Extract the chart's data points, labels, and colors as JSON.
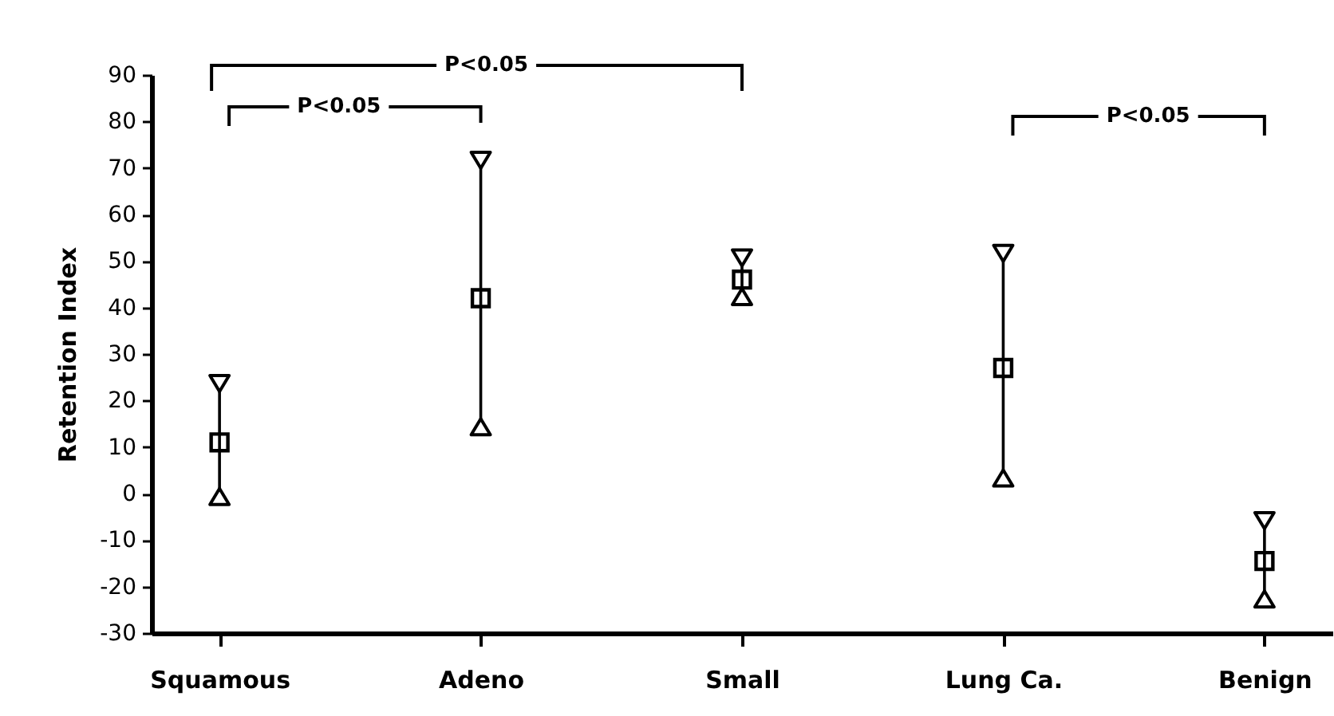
{
  "chart_data": {
    "type": "scatter",
    "ylabel": "Retention     Index",
    "categories": [
      "Squamous",
      "Adeno",
      "Small",
      "Lung Ca.",
      "Benign"
    ],
    "values": [
      11,
      42,
      46,
      27,
      -14.5
    ],
    "errors": [
      [
        -1,
        24
      ],
      [
        14,
        72
      ],
      [
        42,
        51
      ],
      [
        3,
        52
      ],
      [
        -23,
        -5.5
      ]
    ],
    "color": "#000000",
    "marker": "square",
    "ylim": [
      -30,
      90
    ],
    "yticks": [
      -30,
      -20,
      -10,
      0,
      10,
      20,
      30,
      40,
      50,
      60,
      70,
      80,
      90
    ],
    "grid": false,
    "annotations": [
      "P<0.05",
      "P<0.05",
      "P<0.05"
    ]
  }
}
